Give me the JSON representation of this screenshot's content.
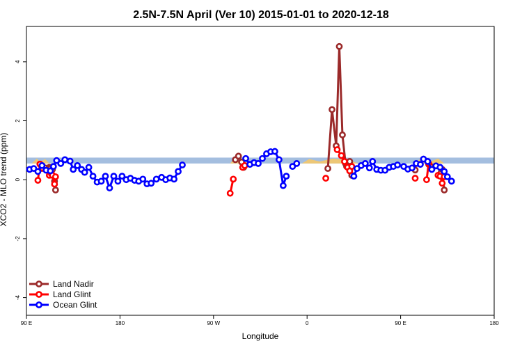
{
  "chart_data": {
    "type": "line",
    "title": "2.5N-7.5N April (Ver 10)   2015-01-01 to 2020-12-18",
    "xlabel": "Longitude",
    "ylabel": "XCO2 - MLO trend (ppm)",
    "xlim": [
      90,
      450
    ],
    "ylim": [
      -4.6,
      5.2
    ],
    "x_ticks": [
      {
        "value": 90,
        "label": "90 E"
      },
      {
        "value": 180,
        "label": "180"
      },
      {
        "value": 270,
        "label": "90 W"
      },
      {
        "value": 360,
        "label": "0"
      },
      {
        "value": 450,
        "label": "90 E"
      },
      {
        "value": 540,
        "label": "180"
      }
    ],
    "y_ticks": [
      {
        "value": -4,
        "label": "-4"
      },
      {
        "value": -2,
        "label": "-2"
      },
      {
        "value": 0,
        "label": "0"
      },
      {
        "value": 2,
        "label": "2"
      },
      {
        "value": 4,
        "label": "4"
      }
    ],
    "x_display_range": [
      90,
      540
    ],
    "reference_band": {
      "y_min": 0.55,
      "y_max": 0.75,
      "color": "#a4bedf"
    },
    "land_fill_color": "#f5c86a",
    "grid": false,
    "legend_position": "bottom-left",
    "series": [
      {
        "name": "Land Nadir",
        "color": "#9b2a2a",
        "segments": [
          [
            [
              103,
              0.53
            ],
            [
              105,
              0.38
            ],
            [
              108,
              0.4
            ]
          ],
          [
            [
              112,
              0.42
            ],
            [
              113,
              0.38
            ],
            [
              115,
              0.35
            ],
            [
              117,
              -0.05
            ],
            [
              118,
              -0.35
            ]
          ],
          [
            [
              291,
              0.68
            ],
            [
              294,
              0.8
            ],
            [
              297,
              0.6
            ],
            [
              299,
              0.42
            ]
          ],
          [
            [
              380,
              0.38
            ],
            [
              384,
              2.38
            ],
            [
              388,
              1.15
            ],
            [
              391,
              4.52
            ],
            [
              394,
              1.52
            ],
            [
              397,
              0.55
            ],
            [
              398,
              0.45
            ],
            [
              401,
              0.62
            ],
            [
              403,
              0.15
            ]
          ],
          [
            [
              464,
              0.33
            ]
          ],
          [
            [
              477,
              0.52
            ],
            [
              479,
              0.45
            ]
          ],
          [
            [
              487,
              0.15
            ],
            [
              489,
              0.25
            ],
            [
              490,
              0.35
            ],
            [
              492,
              -0.35
            ]
          ]
        ]
      },
      {
        "name": "Land Glint",
        "color": "#ff0000",
        "segments": [
          [
            [
              101,
              -0.02
            ],
            [
              103,
              0.53
            ],
            [
              105,
              0.4
            ]
          ],
          [
            [
              112,
              0.15
            ],
            [
              114,
              0.2
            ],
            [
              115,
              0.15
            ],
            [
              117,
              -0.15
            ],
            [
              118,
              0.1
            ]
          ],
          [
            [
              286,
              -0.46
            ],
            [
              289,
              0.02
            ]
          ],
          [
            [
              298,
              0.42
            ],
            [
              300,
              0.48
            ]
          ],
          [
            [
              378,
              0.05
            ]
          ],
          [
            [
              389,
              1.02
            ],
            [
              393,
              0.82
            ],
            [
              396,
              0.62
            ],
            [
              399,
              0.42
            ],
            [
              401,
              0.3
            ],
            [
              403,
              0.45
            ]
          ],
          [
            [
              464,
              0.05
            ]
          ],
          [
            [
              475,
              0.0
            ],
            [
              477,
              0.55
            ]
          ],
          [
            [
              486,
              0.15
            ],
            [
              488,
              0.12
            ],
            [
              490,
              -0.12
            ],
            [
              492,
              0.1
            ]
          ]
        ]
      },
      {
        "name": "Ocean Glint",
        "color": "#0000ff",
        "segments": [
          [
            [
              93,
              0.35
            ],
            [
              97,
              0.38
            ],
            [
              101,
              0.28
            ],
            [
              105,
              0.48
            ],
            [
              109,
              0.32
            ],
            [
              113,
              0.3
            ],
            [
              116,
              0.45
            ],
            [
              119,
              0.65
            ],
            [
              123,
              0.55
            ],
            [
              127,
              0.68
            ],
            [
              132,
              0.63
            ],
            [
              135,
              0.35
            ],
            [
              139,
              0.48
            ],
            [
              143,
              0.35
            ],
            [
              146,
              0.25
            ],
            [
              150,
              0.42
            ],
            [
              154,
              0.12
            ],
            [
              158,
              -0.08
            ],
            [
              162,
              -0.05
            ],
            [
              166,
              0.12
            ],
            [
              170,
              -0.28
            ],
            [
              174,
              0.12
            ],
            [
              178,
              -0.05
            ],
            [
              182,
              0.12
            ],
            [
              186,
              0.0
            ],
            [
              190,
              0.05
            ],
            [
              194,
              -0.02
            ],
            [
              198,
              -0.05
            ],
            [
              202,
              0.02
            ],
            [
              206,
              -0.14
            ],
            [
              210,
              -0.12
            ],
            [
              215,
              0.02
            ],
            [
              220,
              0.08
            ],
            [
              224,
              0.0
            ],
            [
              228,
              0.06
            ],
            [
              232,
              0.02
            ],
            [
              236,
              0.28
            ],
            [
              240,
              0.5
            ]
          ],
          [
            [
              301,
              0.72
            ],
            [
              305,
              0.52
            ],
            [
              309,
              0.58
            ],
            [
              313,
              0.55
            ],
            [
              317,
              0.72
            ],
            [
              321,
              0.88
            ],
            [
              325,
              0.95
            ],
            [
              329,
              0.96
            ],
            [
              333,
              0.68
            ],
            [
              337,
              -0.2
            ],
            [
              340,
              0.12
            ]
          ],
          [
            [
              346,
              0.45
            ],
            [
              350,
              0.55
            ]
          ],
          [
            [
              405,
              0.12
            ],
            [
              408,
              0.38
            ],
            [
              412,
              0.48
            ],
            [
              416,
              0.55
            ],
            [
              420,
              0.4
            ],
            [
              423,
              0.62
            ],
            [
              427,
              0.35
            ],
            [
              431,
              0.32
            ],
            [
              435,
              0.32
            ],
            [
              439,
              0.42
            ],
            [
              443,
              0.45
            ],
            [
              447,
              0.5
            ]
          ],
          [
            [
              453,
              0.45
            ],
            [
              457,
              0.36
            ],
            [
              461,
              0.4
            ],
            [
              465,
              0.55
            ],
            [
              469,
              0.52
            ],
            [
              472,
              0.7
            ],
            [
              476,
              0.62
            ],
            [
              480,
              0.35
            ],
            [
              484,
              0.47
            ],
            [
              488,
              0.42
            ],
            [
              492,
              0.28
            ],
            [
              495,
              0.1
            ],
            [
              499,
              -0.05
            ]
          ]
        ]
      }
    ]
  }
}
